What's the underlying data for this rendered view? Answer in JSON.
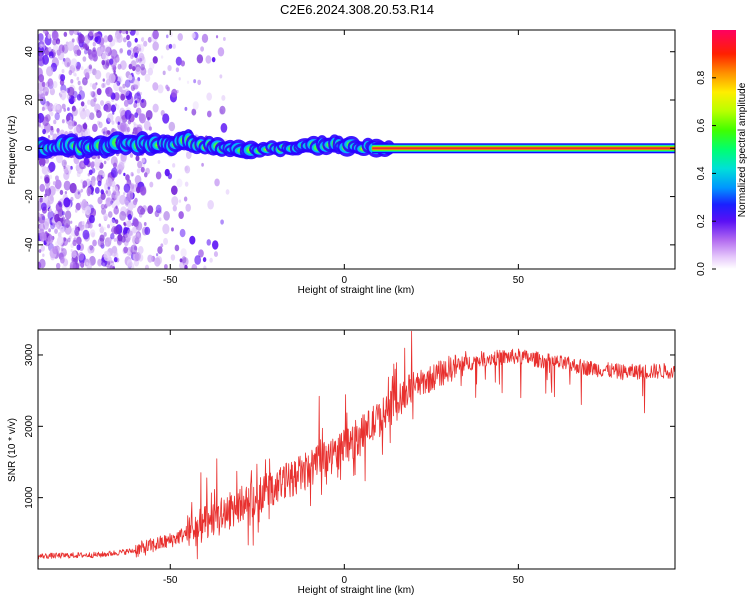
{
  "figure_title": "C2E6.2024.308.20.53.R14",
  "colors": {
    "snr_line": "#e8302e",
    "ridge_core": "#e8302e",
    "ridge_glow": "#33ff33",
    "ridge_edge": "#3300ff",
    "speckle": "#7a2bd9"
  },
  "chart_data": [
    {
      "type": "heatmap",
      "title": "",
      "xlabel": "Height of straight line (km)",
      "ylabel": "Frequency (Hz)",
      "xlim": [
        -88,
        95
      ],
      "ylim": [
        -50,
        49
      ],
      "x_ticks": [
        -50,
        0,
        50
      ],
      "y_ticks": [
        -40,
        -20,
        0,
        20,
        40
      ],
      "colorbar": {
        "label": "Normalized spectral amplitude",
        "range": [
          0.0,
          1.0
        ],
        "ticks": [
          "0.0",
          "0.2",
          "0.4",
          "0.6",
          "0.8"
        ],
        "colormap": [
          "#ffffff",
          "#c27bf2",
          "#7a2bd9",
          "#1a00ff",
          "#00a0ff",
          "#00e0e0",
          "#00ff60",
          "#7aff00",
          "#ffff00",
          "#ff8000",
          "#ff0000",
          "#ff0060"
        ]
      },
      "ridge": {
        "description_value": "dominant frequency near 0 Hz",
        "points": [
          {
            "x": -85,
            "f": 0.5
          },
          {
            "x": -75,
            "f": 1.0
          },
          {
            "x": -65,
            "f": 1.5
          },
          {
            "x": -58,
            "f": 2.0
          },
          {
            "x": -52,
            "f": 1.5
          },
          {
            "x": -45,
            "f": 2.5
          },
          {
            "x": -40,
            "f": 1.0
          },
          {
            "x": -35,
            "f": 0.0
          },
          {
            "x": -28,
            "f": -0.5
          },
          {
            "x": -20,
            "f": 0.0
          },
          {
            "x": -12,
            "f": 0.5
          },
          {
            "x": -5,
            "f": 1.5
          },
          {
            "x": 0,
            "f": 1.0
          },
          {
            "x": 8,
            "f": 0.5
          },
          {
            "x": 20,
            "f": 0.0
          },
          {
            "x": 50,
            "f": 0.0
          },
          {
            "x": 95,
            "f": 0.0
          }
        ]
      }
    },
    {
      "type": "line",
      "title": "",
      "xlabel": "Height of straight line (km)",
      "ylabel": "SNR (10 * v/v)",
      "xlim": [
        -88,
        95
      ],
      "ylim": [
        0,
        3350
      ],
      "x_ticks": [
        -50,
        0,
        50
      ],
      "y_ticks": [
        1000,
        2000,
        3000
      ],
      "series": [
        {
          "trend": [
            {
              "x": -88,
              "y": 180
            },
            {
              "x": -70,
              "y": 200
            },
            {
              "x": -60,
              "y": 260
            },
            {
              "x": -50,
              "y": 400
            },
            {
              "x": -40,
              "y": 620
            },
            {
              "x": -30,
              "y": 900
            },
            {
              "x": -20,
              "y": 1150
            },
            {
              "x": -10,
              "y": 1400
            },
            {
              "x": 0,
              "y": 1700
            },
            {
              "x": 10,
              "y": 2100
            },
            {
              "x": 20,
              "y": 2550
            },
            {
              "x": 30,
              "y": 2800
            },
            {
              "x": 40,
              "y": 2950
            },
            {
              "x": 50,
              "y": 2980
            },
            {
              "x": 60,
              "y": 2900
            },
            {
              "x": 70,
              "y": 2820
            },
            {
              "x": 80,
              "y": 2760
            },
            {
              "x": 95,
              "y": 2780
            }
          ]
        }
      ]
    }
  ]
}
